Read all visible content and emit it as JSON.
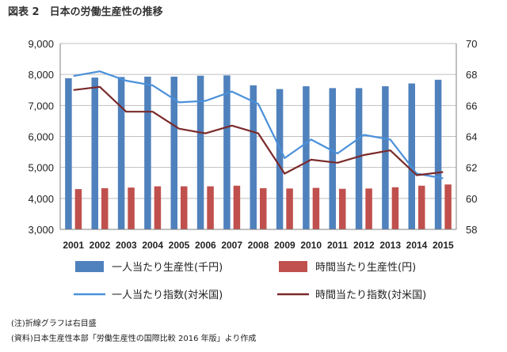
{
  "title": "図表 2　日本の労働生産性の推移",
  "notes": [
    "(注)折線グラフは右目盛",
    "(資料)日本生産性本部「労働生産性の国際比較 2016 年版」より作成"
  ],
  "chart_data": {
    "type": "bar",
    "categories": [
      "2001",
      "2002",
      "2003",
      "2004",
      "2005",
      "2006",
      "2007",
      "2008",
      "2009",
      "2010",
      "2011",
      "2012",
      "2013",
      "2014",
      "2015"
    ],
    "y_left": {
      "min": 3000,
      "max": 9000,
      "step": 1000,
      "ticks": [
        "3,000",
        "4,000",
        "5,000",
        "6,000",
        "7,000",
        "8,000",
        "9,000"
      ]
    },
    "y_right": {
      "min": 58,
      "max": 70,
      "step": 2,
      "ticks": [
        "58",
        "60",
        "62",
        "64",
        "66",
        "68",
        "70"
      ]
    },
    "series": [
      {
        "name": "一人当たり生産性(千円)",
        "type": "bar",
        "axis": "left",
        "color": "#4f81bd",
        "values": [
          7880,
          7900,
          7920,
          7930,
          7930,
          7960,
          7970,
          7650,
          7530,
          7620,
          7560,
          7560,
          7620,
          7710,
          7830
        ]
      },
      {
        "name": "時間当たり生産性(円)",
        "type": "bar",
        "axis": "left",
        "color": "#c0504d",
        "values": [
          4300,
          4330,
          4350,
          4390,
          4390,
          4390,
          4410,
          4330,
          4320,
          4340,
          4310,
          4320,
          4360,
          4410,
          4450
        ]
      },
      {
        "name": "一人当たり指数(対米国)",
        "type": "line",
        "axis": "right",
        "color": "#4a90d9",
        "values": [
          67.9,
          68.2,
          67.6,
          67.3,
          66.2,
          66.3,
          66.9,
          66.1,
          62.6,
          63.8,
          62.9,
          64.1,
          63.8,
          61.6,
          61.3
        ]
      },
      {
        "name": "時間当たり指数(対米国)",
        "type": "line",
        "axis": "right",
        "color": "#7b2a2a",
        "values": [
          67.0,
          67.2,
          65.6,
          65.6,
          64.5,
          64.2,
          64.7,
          64.2,
          61.6,
          62.5,
          62.3,
          62.8,
          63.1,
          61.5,
          61.7
        ]
      }
    ]
  }
}
